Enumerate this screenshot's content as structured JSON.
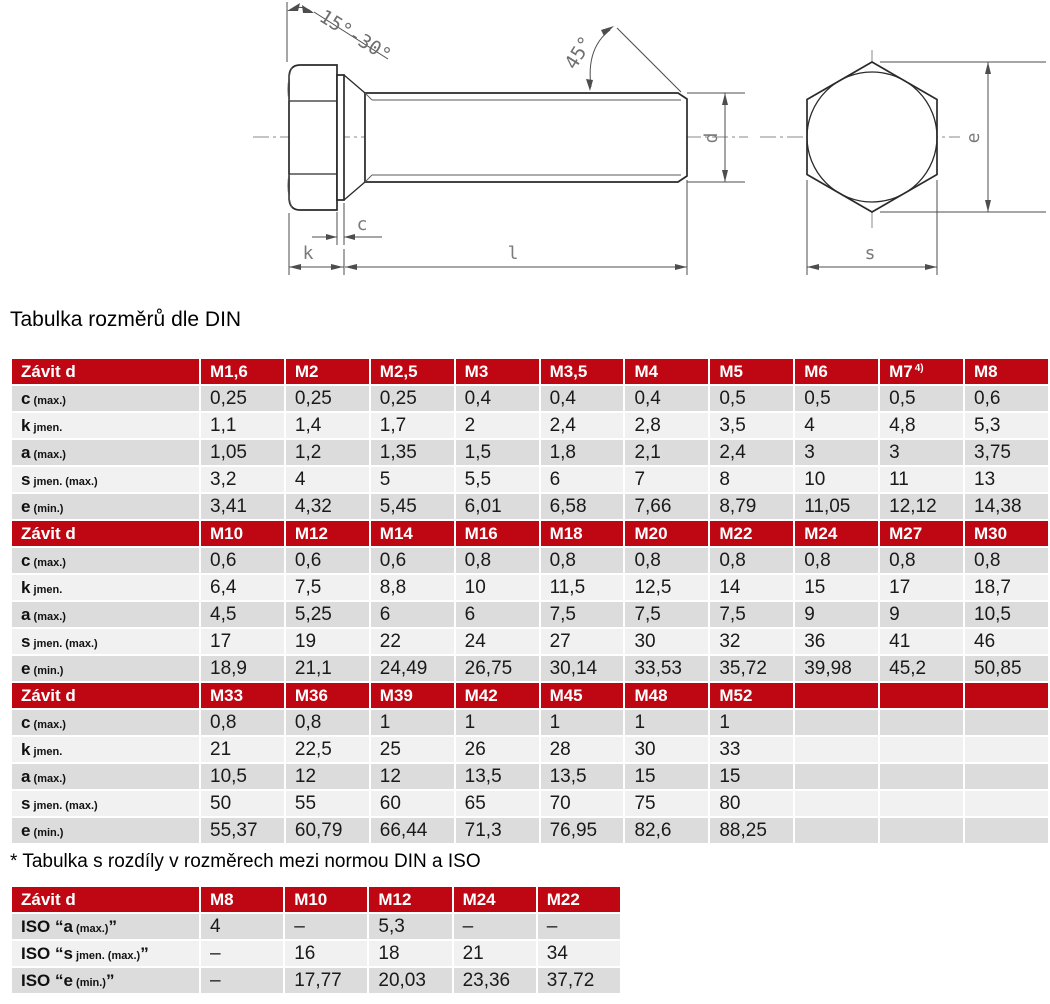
{
  "page": {
    "din_title": "Tabulka rozměrů dle DIN",
    "iso_title": "* Tabulka s rozdíly v rozměrech mezi normou DIN a ISO"
  },
  "drawing": {
    "angle_head_label": "15°-30°",
    "angle_chamfer_label": "45°",
    "dim_c": "c",
    "dim_k": "k",
    "dim_l": "l",
    "dim_d": "d",
    "dim_e": "e",
    "dim_s": "s"
  },
  "din_table": {
    "corner_label": "Závit d",
    "row_labels": [
      {
        "main": "c",
        "sub": "(max.)"
      },
      {
        "main": "k",
        "sub": "jmen."
      },
      {
        "main": "a",
        "sub": "(max.)"
      },
      {
        "main": "s",
        "sub": "jmen. (max.)"
      },
      {
        "main": "e",
        "sub": "(min.)"
      }
    ],
    "sections": [
      {
        "columns": [
          {
            "label": "M1,6"
          },
          {
            "label": "M2"
          },
          {
            "label": "M2,5"
          },
          {
            "label": "M3"
          },
          {
            "label": "M3,5"
          },
          {
            "label": "M4"
          },
          {
            "label": "M5"
          },
          {
            "label": "M6"
          },
          {
            "label": "M7",
            "sup": "4)"
          },
          {
            "label": "M8"
          }
        ],
        "rows": [
          [
            "0,25",
            "0,25",
            "0,25",
            "0,4",
            "0,4",
            "0,4",
            "0,5",
            "0,5",
            "0,5",
            "0,6"
          ],
          [
            "1,1",
            "1,4",
            "1,7",
            "2",
            "2,4",
            "2,8",
            "3,5",
            "4",
            "4,8",
            "5,3"
          ],
          [
            "1,05",
            "1,2",
            "1,35",
            "1,5",
            "1,8",
            "2,1",
            "2,4",
            "3",
            "3",
            "3,75"
          ],
          [
            "3,2",
            "4",
            "5",
            "5,5",
            "6",
            "7",
            "8",
            "10",
            "11",
            "13"
          ],
          [
            "3,41",
            "4,32",
            "5,45",
            "6,01",
            "6,58",
            "7,66",
            "8,79",
            "11,05",
            "12,12",
            "14,38"
          ]
        ]
      },
      {
        "columns": [
          {
            "label": "M10"
          },
          {
            "label": "M12"
          },
          {
            "label": "M14"
          },
          {
            "label": "M16"
          },
          {
            "label": "M18"
          },
          {
            "label": "M20"
          },
          {
            "label": "M22"
          },
          {
            "label": "M24"
          },
          {
            "label": "M27"
          },
          {
            "label": "M30"
          }
        ],
        "rows": [
          [
            "0,6",
            "0,6",
            "0,6",
            "0,8",
            "0,8",
            "0,8",
            "0,8",
            "0,8",
            "0,8",
            "0,8"
          ],
          [
            "6,4",
            "7,5",
            "8,8",
            "10",
            "11,5",
            "12,5",
            "14",
            "15",
            "17",
            "18,7"
          ],
          [
            "4,5",
            "5,25",
            "6",
            "6",
            "7,5",
            "7,5",
            "7,5",
            "9",
            "9",
            "10,5"
          ],
          [
            "17",
            "19",
            "22",
            "24",
            "27",
            "30",
            "32",
            "36",
            "41",
            "46"
          ],
          [
            "18,9",
            "21,1",
            "24,49",
            "26,75",
            "30,14",
            "33,53",
            "35,72",
            "39,98",
            "45,2",
            "50,85"
          ]
        ]
      },
      {
        "columns": [
          {
            "label": "M33"
          },
          {
            "label": "M36"
          },
          {
            "label": "M39"
          },
          {
            "label": "M42"
          },
          {
            "label": "M45"
          },
          {
            "label": "M48"
          },
          {
            "label": "M52"
          },
          {
            "label": ""
          },
          {
            "label": ""
          },
          {
            "label": ""
          }
        ],
        "rows": [
          [
            "0,8",
            "0,8",
            "1",
            "1",
            "1",
            "1",
            "1",
            "",
            "",
            ""
          ],
          [
            "21",
            "22,5",
            "25",
            "26",
            "28",
            "30",
            "33",
            "",
            "",
            ""
          ],
          [
            "10,5",
            "12",
            "12",
            "13,5",
            "13,5",
            "15",
            "15",
            "",
            "",
            ""
          ],
          [
            "50",
            "55",
            "60",
            "65",
            "70",
            "75",
            "80",
            "",
            "",
            ""
          ],
          [
            "55,37",
            "60,79",
            "66,44",
            "71,3",
            "76,95",
            "82,6",
            "88,25",
            "",
            "",
            ""
          ]
        ]
      }
    ]
  },
  "iso_table": {
    "corner_label": "Závit d",
    "columns": [
      {
        "label": "M8"
      },
      {
        "label": "M10"
      },
      {
        "label": "M12"
      },
      {
        "label": "M24"
      },
      {
        "label": "M22"
      }
    ],
    "rows": [
      {
        "label_main": "ISO “a",
        "label_sub": "(max.)",
        "label_close": "”",
        "values": [
          "4",
          "–",
          "5,3",
          "–",
          "–"
        ]
      },
      {
        "label_main": "ISO “s",
        "label_sub": "jmen. (max.)",
        "label_close": "”",
        "values": [
          "–",
          "16",
          "18",
          "21",
          "34"
        ]
      },
      {
        "label_main": "ISO “e",
        "label_sub": "(min.)",
        "label_close": "”",
        "values": [
          "–",
          "17,77",
          "20,03",
          "23,36",
          "37,72"
        ]
      }
    ]
  },
  "colors": {
    "header_red": "#be0712",
    "row_dark": "#dcdcdc",
    "row_light": "#f1f1f1"
  }
}
